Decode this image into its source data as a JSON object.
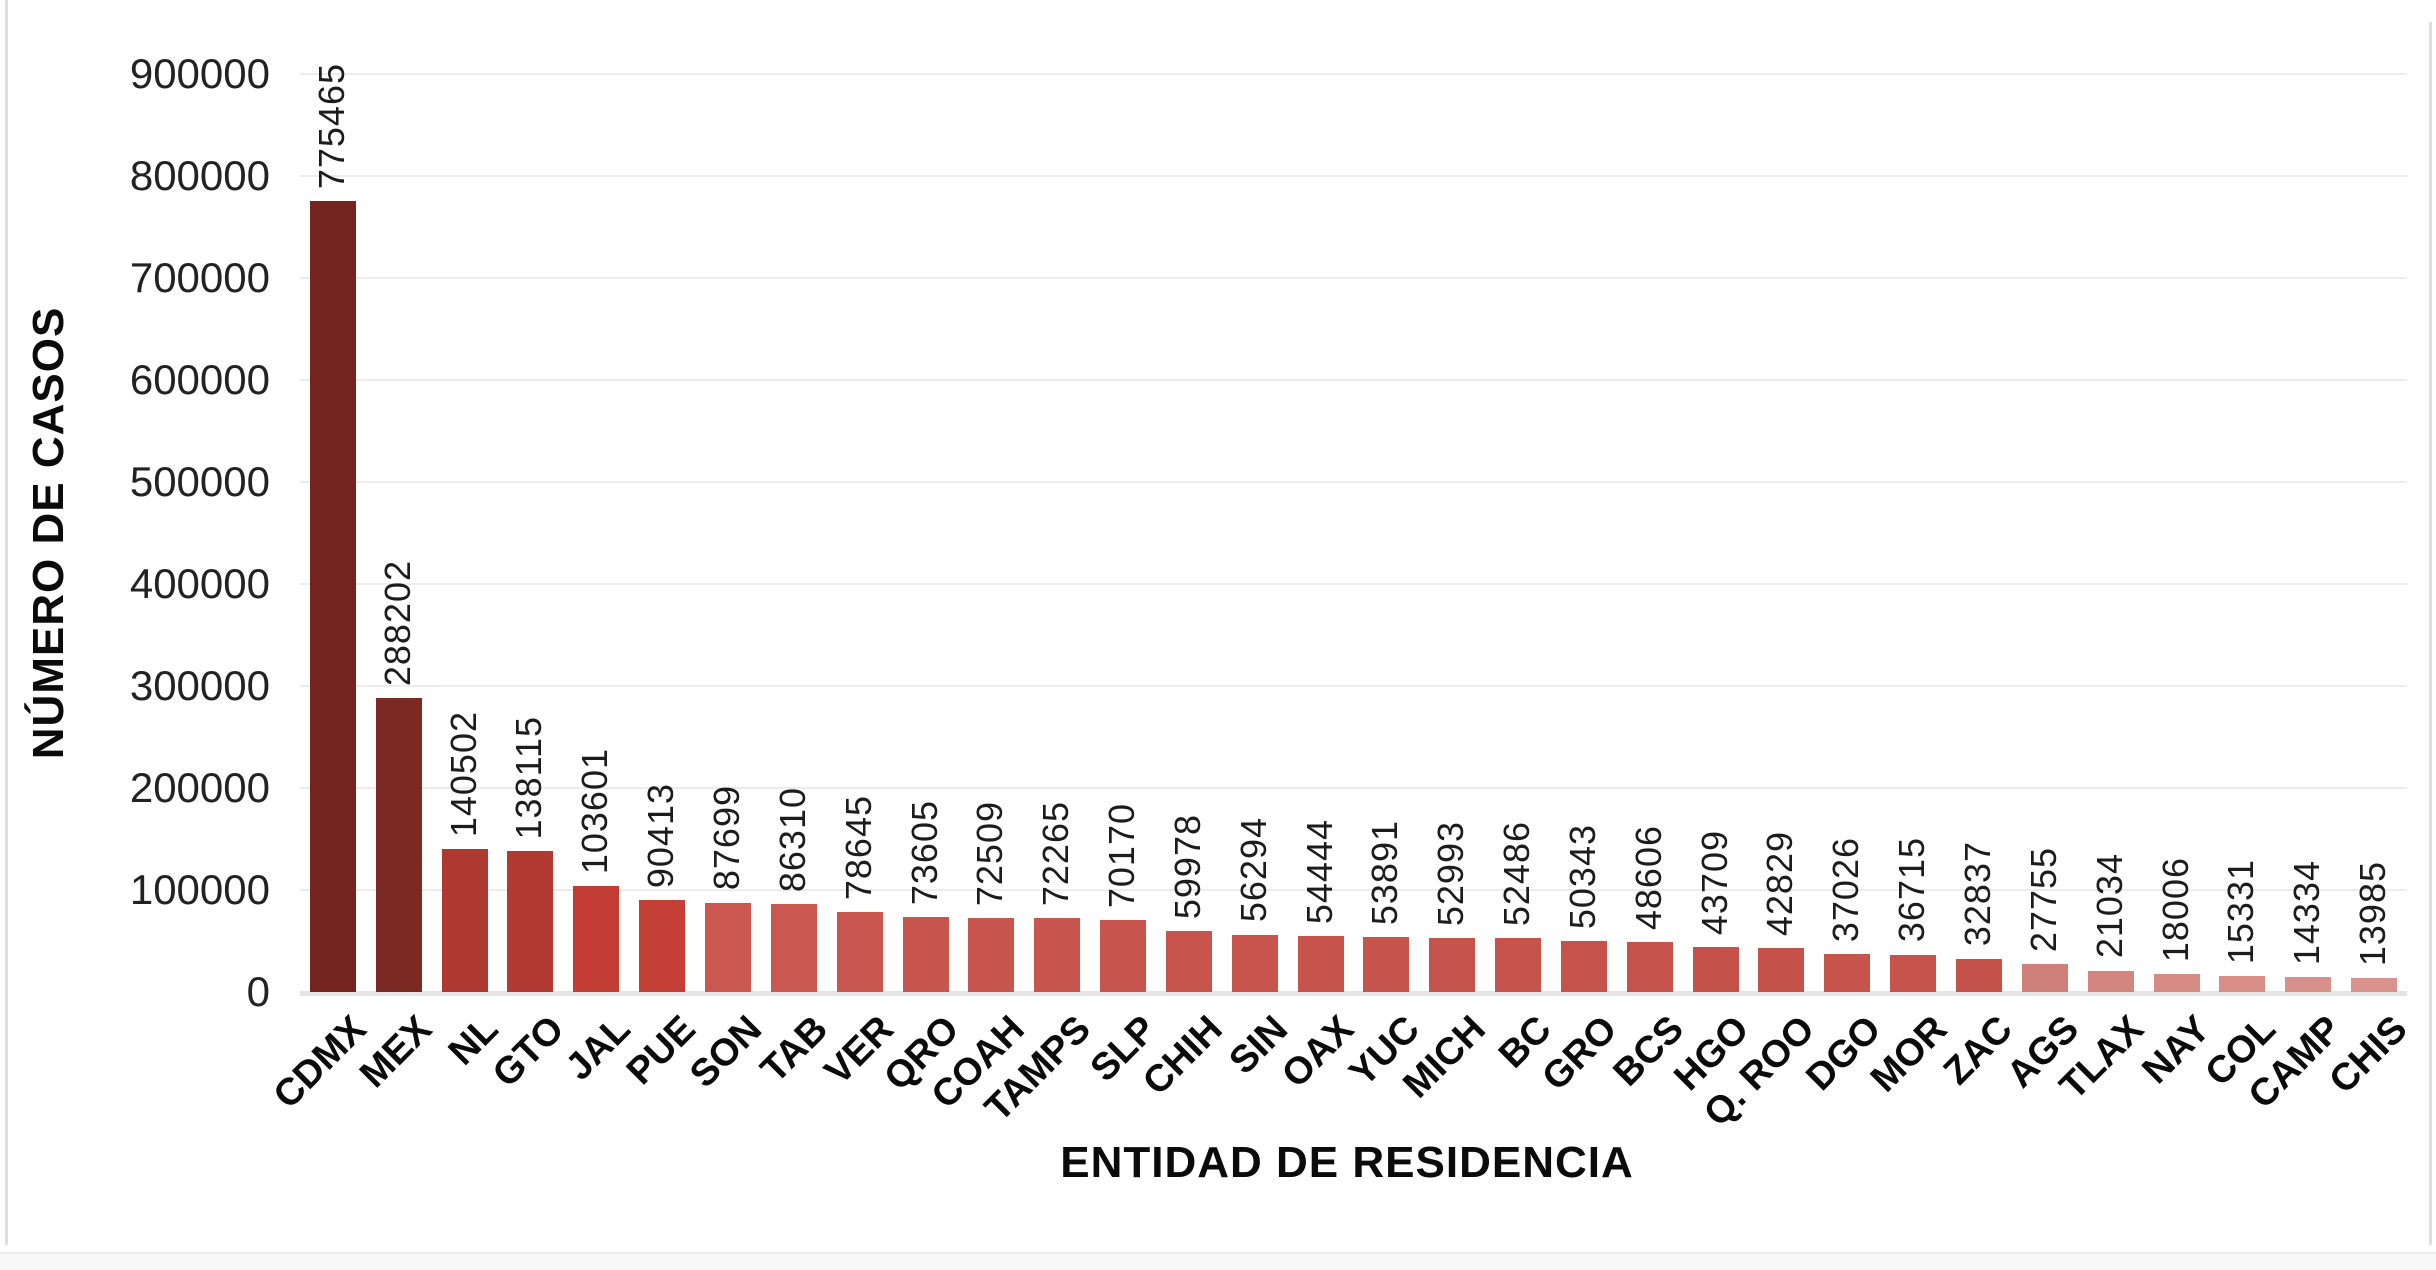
{
  "chart_data": {
    "type": "bar",
    "title": "",
    "xlabel": "ENTIDAD DE RESIDENCIA",
    "ylabel": "NÚMERO DE CASOS",
    "ylim": [
      0,
      900000
    ],
    "yticks": [
      0,
      100000,
      200000,
      300000,
      400000,
      500000,
      600000,
      700000,
      800000,
      900000
    ],
    "grid": true,
    "legend": "none",
    "categories": [
      "CDMX",
      "MEX",
      "NL",
      "GTO",
      "JAL",
      "PUE",
      "SON",
      "TAB",
      "VER",
      "QRO",
      "COAH",
      "TAMPS",
      "SLP",
      "CHIH",
      "SIN",
      "OAX",
      "YUC",
      "MICH",
      "BC",
      "GRO",
      "BCS",
      "HGO",
      "Q. ROO",
      "DGO",
      "MOR",
      "ZAC",
      "AGS",
      "TLAX",
      "NAY",
      "COL",
      "CAMP",
      "CHIS"
    ],
    "values": [
      775465,
      288202,
      140502,
      138115,
      103601,
      90413,
      87699,
      86310,
      78645,
      73605,
      72509,
      72265,
      70170,
      59978,
      56294,
      54444,
      53891,
      52993,
      52486,
      50343,
      48606,
      43709,
      42829,
      37026,
      36715,
      32837,
      27755,
      21034,
      18006,
      15331,
      14334,
      13985
    ],
    "bar_colors": [
      "#75231F",
      "#7C2923",
      "#AE3931",
      "#B23A32",
      "#C23D34",
      "#C43F36",
      "#CA5850",
      "#CA5850",
      "#C9574F",
      "#C9564E",
      "#C9564E",
      "#C9564E",
      "#C8554D",
      "#C8554D",
      "#C8554D",
      "#C7544C",
      "#C7544C",
      "#C7544C",
      "#C7544C",
      "#C6534B",
      "#C6534B",
      "#C5524A",
      "#C5524A",
      "#C6544C",
      "#C6544C",
      "#C4524A",
      "#D0807A",
      "#D3867F",
      "#D58B84",
      "#D78E87",
      "#D8918A",
      "#D9938C"
    ],
    "value_label_rotation": -90,
    "category_label_rotation": -45
  },
  "colors": {
    "gridline": "#ececec",
    "baseline": "#e5e3e3",
    "tick_text": "#222222",
    "value_label_text": "#1c1c1c",
    "category_text": "#0b0b0b"
  }
}
